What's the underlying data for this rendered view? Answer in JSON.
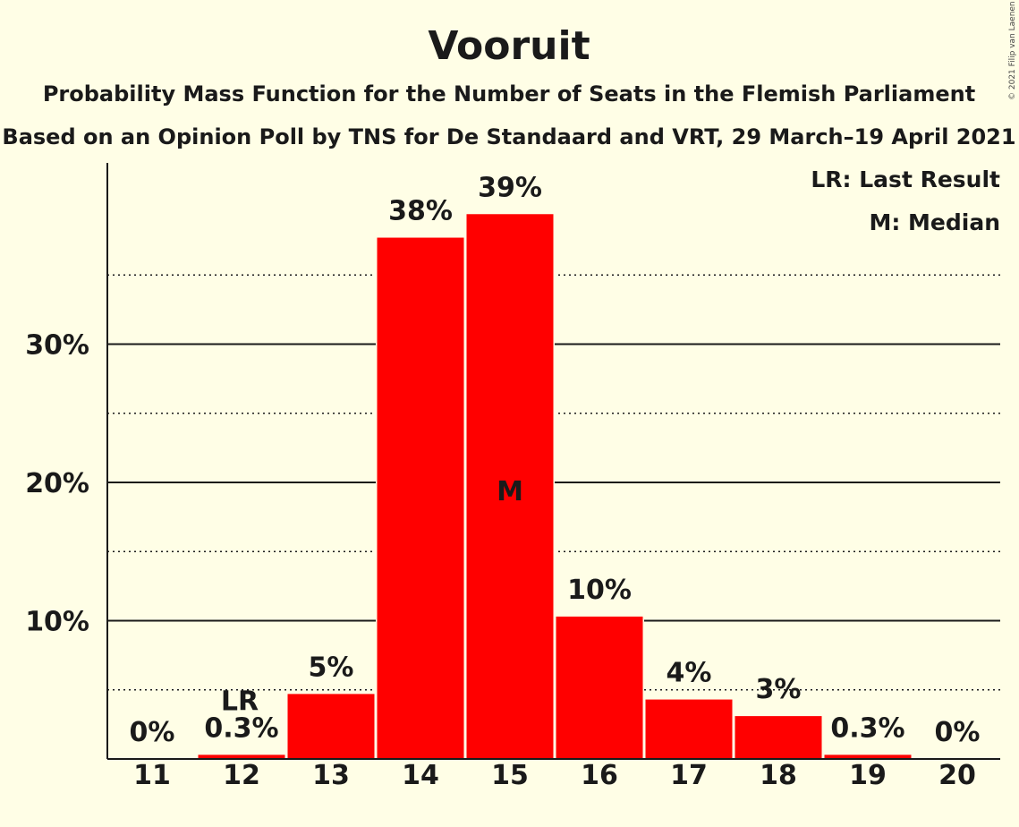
{
  "header": {
    "title": "Vooruit",
    "subtitle_1": "Probability Mass Function for the Number of Seats in the Flemish Parliament",
    "subtitle_2": "Based on an Opinion Poll by TNS for De Standaard and VRT, 29 March–19 April 2021",
    "copyright": "© 2021 Filip van Laenen"
  },
  "legend": {
    "last_result": "LR: Last Result",
    "median": "M: Median",
    "placement": "top-right"
  },
  "colors": {
    "background": "#FFFEE6",
    "bar": "#FF0000",
    "median_marker_text": "#FFFFFF",
    "text": "#1a1a1a"
  },
  "chart_data": {
    "type": "bar",
    "title": "Vooruit",
    "xlabel": "",
    "ylabel": "",
    "categories": [
      "11",
      "12",
      "13",
      "14",
      "15",
      "16",
      "17",
      "18",
      "19",
      "20"
    ],
    "values": [
      0,
      0.3,
      4.7,
      37.7,
      39.4,
      10.3,
      4.3,
      3.1,
      0.3,
      0
    ],
    "value_labels": [
      "0%",
      "0.3%",
      "5%",
      "38%",
      "39%",
      "10%",
      "4%",
      "3%",
      "0.3%",
      "0%"
    ],
    "ylim": [
      0,
      43
    ],
    "y_ticks": [
      {
        "value": 10,
        "label": "10%"
      },
      {
        "value": 20,
        "label": "20%"
      },
      {
        "value": 30,
        "label": "30%"
      }
    ],
    "y_minor_gridlines": [
      5,
      15,
      25,
      35
    ],
    "grid": true,
    "markers": [
      {
        "category": "12",
        "label": "LR",
        "meaning": "Last Result"
      },
      {
        "category": "15",
        "label": "M",
        "meaning": "Median"
      }
    ]
  }
}
